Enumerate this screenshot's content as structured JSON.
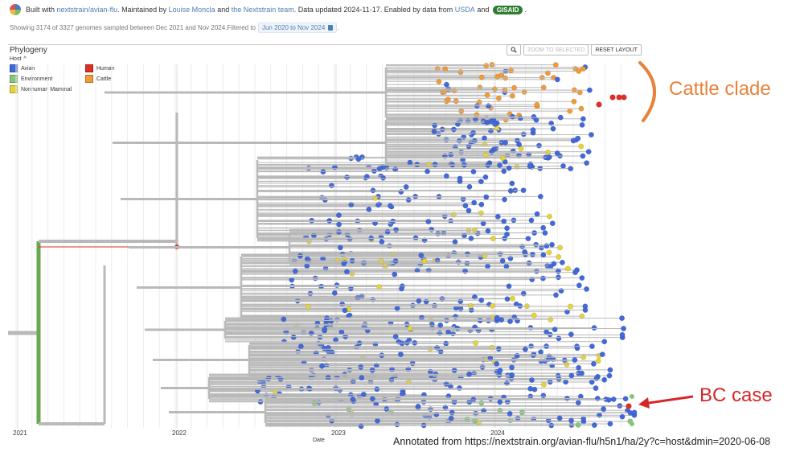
{
  "header": {
    "built_prefix": "Built with",
    "build_link": "nextstrain/avian-flu",
    "maintained_text": ". Maintained by",
    "maintainer1": "Louise Moncla",
    "and1": "and",
    "maintainer2": "the Nextstrain team",
    "updated_text": ". Data updated 2024-11-17. Enabled by data from",
    "usda": "USDA",
    "and2": "and",
    "gisaid": "GISAID",
    "end": "."
  },
  "filter": {
    "showing_text": "Showing 3174 of 3327 genomes sampled between Dec 2021 and Nov 2024.Filtered to",
    "date_filter": "Jun 2020 to Nov 2024",
    "end": "."
  },
  "panel": {
    "title": "Phylogeny",
    "zoom_label": "ZOOM TO SELECTED",
    "reset_label": "RESET LAYOUT"
  },
  "legend": {
    "title": "Host",
    "items": [
      {
        "label": "Avian",
        "color": "#4269d9"
      },
      {
        "label": "Human",
        "color": "#dc2f25"
      },
      {
        "label": "Environment",
        "color": "#85c77a"
      },
      {
        "label": "Cattle",
        "color": "#f29a34"
      },
      {
        "label": "Nonhuman Mammal",
        "color": "#e6d33a"
      }
    ]
  },
  "axis": {
    "ticks": [
      "2021",
      "2022",
      "2023",
      "2024"
    ],
    "label": "Date"
  },
  "annotations": {
    "cattle": "Cattle clade",
    "bc": "BC case",
    "source": "Annotated from https://nextstrain.org/avian-flu/h5n1/ha/2y?c=host&dmin=2020-06-08"
  },
  "colors": {
    "avian": "#4269d9",
    "human": "#dc2f25",
    "environment": "#85c77a",
    "cattle": "#f29a34",
    "mammal": "#e6d33a",
    "branch": "#b9b9b9",
    "root": "#6aa84f",
    "annotation_orange": "#e8823a",
    "annotation_red": "#d62728"
  }
}
